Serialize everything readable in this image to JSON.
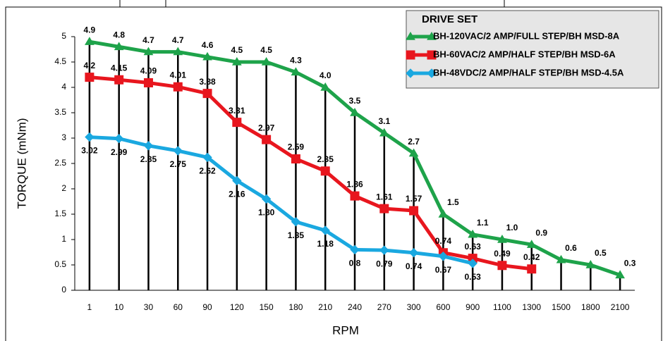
{
  "chart_data": {
    "type": "line",
    "xlabel": "RPM",
    "ylabel": "TORQUE (mNm)",
    "legend_title": "DRIVE SET",
    "legend": "top-right",
    "categories": [
      "1",
      "10",
      "30",
      "60",
      "90",
      "120",
      "150",
      "180",
      "210",
      "240",
      "270",
      "300",
      "600",
      "900",
      "1100",
      "1300",
      "1500",
      "1800",
      "2100"
    ],
    "ylim": [
      0,
      5
    ],
    "yticks": [
      0,
      0.5,
      1,
      1.5,
      2,
      2.5,
      3,
      3.5,
      4,
      4.5,
      5
    ],
    "series": [
      {
        "name": "BH-120VAC/2 AMP/FULL STEP/BH MSD-8A",
        "color": "#1ea34a",
        "marker": "triangle",
        "values": [
          4.9,
          4.8,
          4.7,
          4.7,
          4.6,
          4.5,
          4.5,
          4.3,
          4.0,
          3.5,
          3.1,
          2.7,
          1.5,
          1.1,
          1.0,
          0.9,
          0.6,
          0.5,
          0.3
        ],
        "value_labels": [
          "4.9",
          "4.8",
          "4.7",
          "4.7",
          "4.6",
          "4.5",
          "4.5",
          "4.3",
          "4.0",
          "3.5",
          "3.1",
          "2.7",
          "1.5",
          "1.1",
          "1.0",
          "0.9",
          "0.6",
          "0.5",
          "0.3"
        ]
      },
      {
        "name": "BH-60VAC/2 AMP/HALF STEP/BH MSD-6A",
        "color": "#e8161e",
        "marker": "square",
        "values": [
          4.2,
          4.15,
          4.09,
          4.01,
          3.88,
          3.31,
          2.97,
          2.59,
          2.35,
          1.86,
          1.61,
          1.57,
          0.74,
          0.63,
          0.49,
          0.42,
          null,
          null,
          null
        ],
        "value_labels": [
          "4.2",
          "4.15",
          "4.09",
          "4.01",
          "3.88",
          "3.31",
          "2.97",
          "2.59",
          "2.35",
          "1.86",
          "1.61",
          "1.57",
          "0.74",
          "0.63",
          "0.49",
          "0.42",
          null,
          null,
          null
        ]
      },
      {
        "name": "BH-48VDC/2 AMP/HALF STEP/BH MSD-4.5A",
        "color": "#1aa8e0",
        "marker": "diamond",
        "values": [
          3.02,
          2.99,
          2.85,
          2.75,
          2.62,
          2.16,
          1.8,
          1.35,
          1.18,
          0.8,
          0.79,
          0.74,
          0.67,
          0.53,
          null,
          null,
          null,
          null,
          null
        ],
        "value_labels": [
          "3.02",
          "2.99",
          "2.85",
          "2.75",
          "2.62",
          "2.16",
          "1.80",
          "1.35",
          "1.18",
          "0.8",
          "0.79",
          "0.74",
          "0.67",
          "0.53",
          null,
          null,
          null,
          null,
          null
        ]
      }
    ]
  }
}
